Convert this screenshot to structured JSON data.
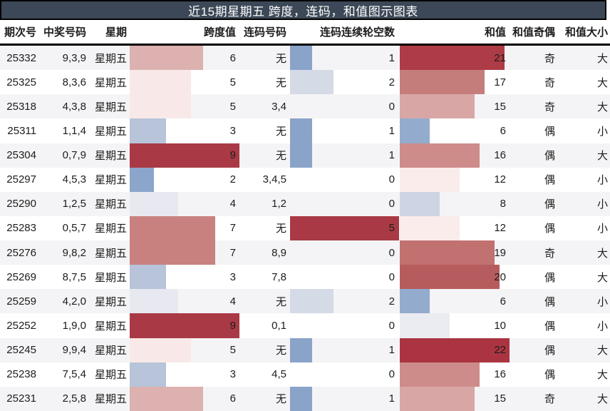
{
  "title": "近15期星期五 跨度，连码，和值图示图表",
  "colors": {
    "title_bg": "#3c4857",
    "title_text": "#ffffff",
    "row_alt_bg": "#f4f4f6",
    "border": "#000000",
    "high_red": "#a93a45",
    "low_blue": "#8aa3c9"
  },
  "chart_data": {
    "type": "table",
    "title": "近15期星期五 跨度，连码，和值图示图表",
    "columns": [
      "期次号",
      "中奖号码",
      "星期",
      "跨度值",
      "连码号码",
      "连码连续轮空数",
      "和值",
      "和值奇偶",
      "和值大小"
    ],
    "bar_scales": {
      "span_max": 9,
      "skip_max": 5,
      "sum_max": 22
    },
    "rows": [
      {
        "period": "25332",
        "numbers": "9,3,9",
        "weekday": "星期五",
        "span": 6,
        "span_color": "#dcb1af",
        "lianma": "无",
        "skip": 1,
        "skip_color": "#8aa3c9",
        "sum": 21,
        "sum_color": "#ad3c46",
        "parity": "奇",
        "size": "大"
      },
      {
        "period": "25325",
        "numbers": "8,3,6",
        "weekday": "星期五",
        "span": 5,
        "span_color": "#f8e9e8",
        "lianma": "无",
        "skip": 2,
        "skip_color": "#d5dae7",
        "sum": 17,
        "sum_color": "#c57d7c",
        "parity": "奇",
        "size": "大"
      },
      {
        "period": "25318",
        "numbers": "4,3,8",
        "weekday": "星期五",
        "span": 5,
        "span_color": "#f8e9e8",
        "lianma": "3,4",
        "skip": 0,
        "skip_color": "",
        "sum": 15,
        "sum_color": "#d8a7a5",
        "parity": "奇",
        "size": "大"
      },
      {
        "period": "25311",
        "numbers": "1,1,4",
        "weekday": "星期五",
        "span": 3,
        "span_color": "#b7c4da",
        "lianma": "无",
        "skip": 1,
        "skip_color": "#8aa3c9",
        "sum": 6,
        "sum_color": "#93abcd",
        "parity": "偶",
        "size": "小"
      },
      {
        "period": "25304",
        "numbers": "0,7,9",
        "weekday": "星期五",
        "span": 9,
        "span_color": "#a93a45",
        "lianma": "无",
        "skip": 1,
        "skip_color": "#8aa3c9",
        "sum": 16,
        "sum_color": "#cd8c8a",
        "parity": "偶",
        "size": "大"
      },
      {
        "period": "25297",
        "numbers": "4,5,3",
        "weekday": "星期五",
        "span": 2,
        "span_color": "#8ba5cb",
        "lianma": "3,4,5",
        "skip": 0,
        "skip_color": "",
        "sum": 12,
        "sum_color": "#f9eceb",
        "parity": "偶",
        "size": "小"
      },
      {
        "period": "25290",
        "numbers": "1,2,5",
        "weekday": "星期五",
        "span": 4,
        "span_color": "#e8e9f0",
        "lianma": "1,2",
        "skip": 0,
        "skip_color": "",
        "sum": 8,
        "sum_color": "#cdd5e5",
        "parity": "偶",
        "size": "小"
      },
      {
        "period": "25283",
        "numbers": "0,5,7",
        "weekday": "星期五",
        "span": 7,
        "span_color": "#c8817f",
        "lianma": "无",
        "skip": 5,
        "skip_color": "#a93a45",
        "sum": 12,
        "sum_color": "#f9eceb",
        "parity": "偶",
        "size": "小"
      },
      {
        "period": "25276",
        "numbers": "9,8,2",
        "weekday": "星期五",
        "span": 7,
        "span_color": "#c8817f",
        "lianma": "8,9",
        "skip": 0,
        "skip_color": "",
        "sum": 19,
        "sum_color": "#c17170",
        "parity": "奇",
        "size": "大"
      },
      {
        "period": "25269",
        "numbers": "8,7,5",
        "weekday": "星期五",
        "span": 3,
        "span_color": "#b7c4da",
        "lianma": "7,8",
        "skip": 0,
        "skip_color": "",
        "sum": 20,
        "sum_color": "#b75c5e",
        "parity": "偶",
        "size": "大"
      },
      {
        "period": "25259",
        "numbers": "4,2,0",
        "weekday": "星期五",
        "span": 4,
        "span_color": "#e8e9f0",
        "lianma": "无",
        "skip": 2,
        "skip_color": "#d5dae7",
        "sum": 6,
        "sum_color": "#93abcd",
        "parity": "偶",
        "size": "小"
      },
      {
        "period": "25252",
        "numbers": "1,9,0",
        "weekday": "星期五",
        "span": 9,
        "span_color": "#a93a45",
        "lianma": "0,1",
        "skip": 0,
        "skip_color": "",
        "sum": 10,
        "sum_color": "#ebecf1",
        "parity": "偶",
        "size": "小"
      },
      {
        "period": "25245",
        "numbers": "9,9,4",
        "weekday": "星期五",
        "span": 5,
        "span_color": "#f8e9e8",
        "lianma": "无",
        "skip": 1,
        "skip_color": "#8aa3c9",
        "sum": 22,
        "sum_color": "#aa3541",
        "parity": "偶",
        "size": "大"
      },
      {
        "period": "25238",
        "numbers": "7,5,4",
        "weekday": "星期五",
        "span": 3,
        "span_color": "#b7c4da",
        "lianma": "4,5",
        "skip": 0,
        "skip_color": "",
        "sum": 16,
        "sum_color": "#cd8c8a",
        "parity": "偶",
        "size": "大"
      },
      {
        "period": "25231",
        "numbers": "2,5,8",
        "weekday": "星期五",
        "span": 6,
        "span_color": "#dcb1af",
        "lianma": "无",
        "skip": 1,
        "skip_color": "#8aa3c9",
        "sum": 15,
        "sum_color": "#d8a7a5",
        "parity": "奇",
        "size": "大"
      }
    ]
  }
}
